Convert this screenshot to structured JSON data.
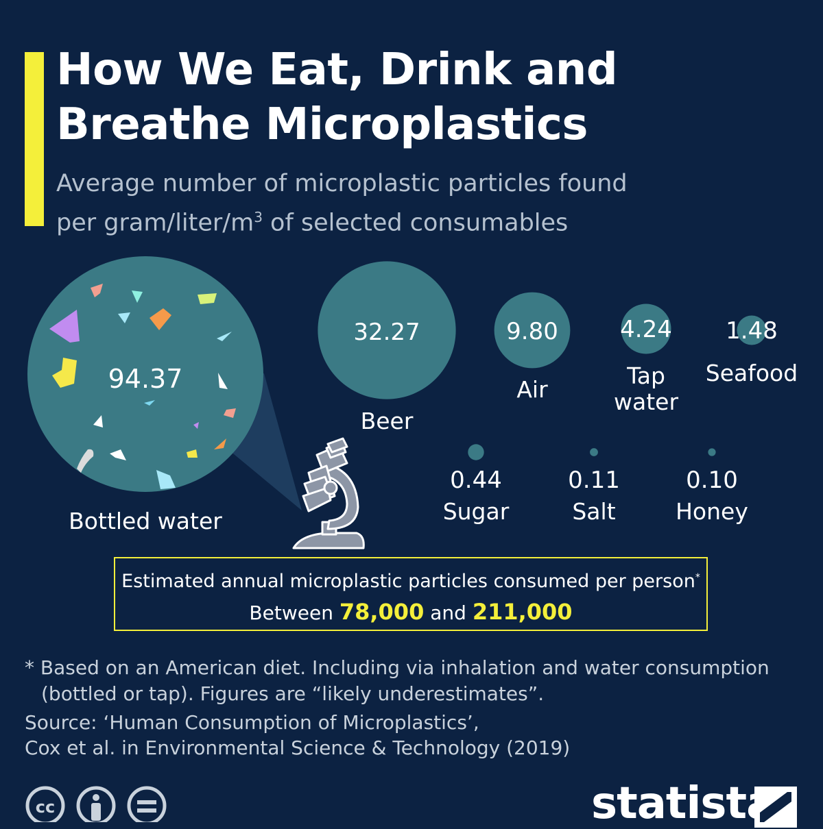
{
  "chart_data": {
    "type": "bubble",
    "title": "How We Eat, Drink and Breathe Microplastics",
    "subtitle_line1": "Average number of microplastic particles found",
    "subtitle_line2_pre": "per gram/liter/m",
    "subtitle_line2_sup": "3",
    "subtitle_line2_post": " of selected consumables",
    "items": [
      {
        "label": "Bottled water",
        "value": 94.37,
        "value_label": "94.37"
      },
      {
        "label": "Beer",
        "value": 32.27,
        "value_label": "32.27"
      },
      {
        "label": "Air",
        "value": 9.8,
        "value_label": "9.80"
      },
      {
        "label": "Tap water",
        "value": 4.24,
        "value_label": "4.24"
      },
      {
        "label": "Seafood",
        "value": 1.48,
        "value_label": "1.48"
      },
      {
        "label": "Sugar",
        "value": 0.44,
        "value_label": "0.44"
      },
      {
        "label": "Salt",
        "value": 0.11,
        "value_label": "0.11"
      },
      {
        "label": "Honey",
        "value": 0.1,
        "value_label": "0.10"
      }
    ]
  },
  "callout": {
    "text": "Estimated annual microplastic particles consumed per person",
    "text_sup": "*",
    "range_pre": "Between ",
    "range_low": "78,000",
    "range_mid": " and ",
    "range_high": "211,000"
  },
  "footnote": {
    "line1": "* Based on an American diet. Including via inhalation and water consumption",
    "line2": "(bottled or tap). Figures are “likely underestimates”."
  },
  "source": {
    "line1": "Source: ‘Human Consumption of Microplastics’,",
    "line2": "Cox et al. in Environmental Science & Technology (2019)"
  },
  "logo": {
    "text": "statista"
  },
  "icons": [
    "cc-icon",
    "by-attribution-icon",
    "nd-equals-icon",
    "microscope-icon",
    "statista-logo-mark-icon"
  ],
  "colors": {
    "background": "#0c2242",
    "bubble": "#3b7a85",
    "accent": "#f4ef3a",
    "text": "#ffffff",
    "subtext": "#b5c1cf"
  }
}
